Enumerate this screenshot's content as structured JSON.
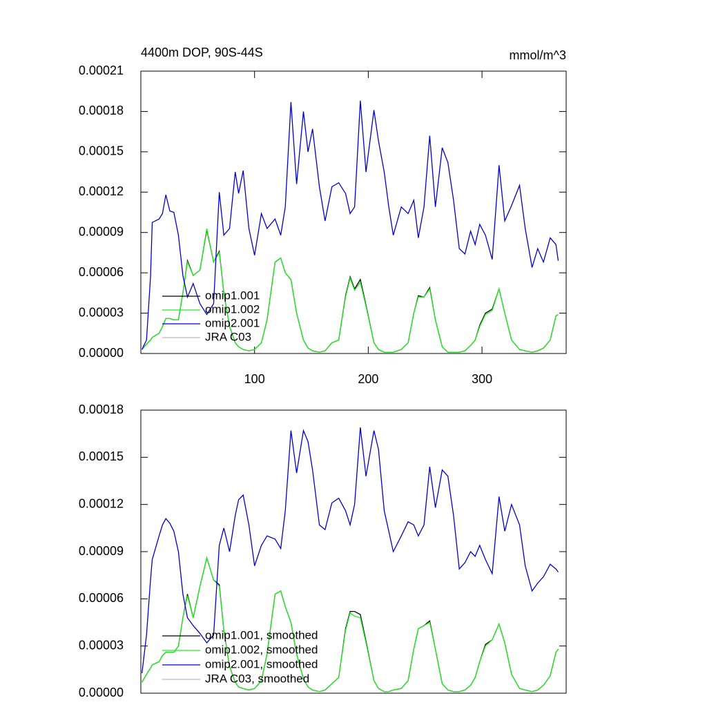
{
  "chart_data": [
    {
      "type": "line",
      "title": "4400m DOP, 90S-44S",
      "units": "mmol/m^3",
      "x": [
        1,
        5,
        8.5,
        10,
        16,
        19,
        22,
        25.5,
        29,
        33,
        37,
        41,
        46,
        52,
        58,
        64,
        69,
        73,
        78,
        83,
        86,
        90,
        95,
        100,
        106,
        111,
        118,
        123,
        127,
        132,
        137,
        143,
        147,
        151,
        157,
        162,
        168,
        174,
        180,
        184,
        188,
        193,
        198,
        205,
        209,
        214,
        218,
        222,
        229,
        235,
        240,
        244,
        249,
        254,
        259,
        265,
        270,
        275,
        280,
        285,
        290,
        294,
        298,
        303,
        309,
        315,
        320,
        326,
        333,
        338,
        344,
        349,
        354,
        360,
        365,
        367
      ],
      "series": [
        {
          "name": "omip1.001",
          "color": "#000000",
          "values": [
            3e-06,
            7e-06,
            1e-05,
            1.2e-05,
            1.5e-05,
            2e-05,
            2.6e-05,
            2.6e-05,
            2.5e-05,
            2.5e-05,
            4.5e-05,
            6.9e-05,
            5.8e-05,
            6.2e-05,
            9.2e-05,
            6.8e-05,
            7.6e-05,
            4.5e-05,
            2e-05,
            8e-06,
            5e-06,
            3e-06,
            2e-06,
            3e-06,
            8e-06,
            2.5e-05,
            6.8e-05,
            7.1e-05,
            6e-05,
            5.5e-05,
            3e-05,
            1e-05,
            4e-06,
            2e-06,
            1e-06,
            2e-06,
            8e-06,
            1e-05,
            4.3e-05,
            5.7e-05,
            4.8e-05,
            5.5e-05,
            3.6e-05,
            8e-06,
            3e-06,
            1e-06,
            1e-06,
            1e-06,
            3e-06,
            8e-06,
            3e-05,
            4.3e-05,
            4.2e-05,
            4.9e-05,
            2.5e-05,
            5e-06,
            1e-06,
            1e-06,
            1e-06,
            2e-06,
            6e-06,
            1e-05,
            2.1e-05,
            3e-05,
            3.3e-05,
            4.8e-05,
            3e-05,
            1e-05,
            3e-06,
            2e-06,
            1e-06,
            2e-06,
            4e-06,
            1e-05,
            2.8e-05,
            2.9e-05
          ]
        },
        {
          "name": "omip1.002",
          "color": "#22ee22",
          "values": [
            3e-06,
            7e-06,
            1e-05,
            1.2e-05,
            1.5e-05,
            2e-05,
            2.6e-05,
            2.6e-05,
            2.5e-05,
            2.5e-05,
            4.5e-05,
            6.8e-05,
            5.8e-05,
            6.2e-05,
            9.3e-05,
            6.8e-05,
            7.5e-05,
            4.5e-05,
            2e-05,
            8e-06,
            5e-06,
            3e-06,
            2e-06,
            3e-06,
            8e-06,
            2.5e-05,
            6.8e-05,
            7.1e-05,
            6e-05,
            5.5e-05,
            3e-05,
            1e-05,
            4e-06,
            2e-06,
            1e-06,
            2e-06,
            8e-06,
            1e-05,
            4.2e-05,
            5.6e-05,
            4.7e-05,
            5.3e-05,
            3.5e-05,
            8e-06,
            3e-06,
            1e-06,
            1e-06,
            1e-06,
            3e-06,
            8e-06,
            3e-05,
            4.2e-05,
            4.2e-05,
            4.8e-05,
            2.5e-05,
            5e-06,
            1e-06,
            1e-06,
            1e-06,
            2e-06,
            6e-06,
            1e-05,
            2e-05,
            2.9e-05,
            3.2e-05,
            4.8e-05,
            3e-05,
            1e-05,
            3e-06,
            2e-06,
            1e-06,
            2e-06,
            4e-06,
            1e-05,
            2.8e-05,
            2.9e-05
          ]
        },
        {
          "name": "omip2.001",
          "color": "#0000cc",
          "values": [
            3e-06,
            1e-05,
            5.7e-05,
            9.75e-05,
            0.0001,
            0.000104,
            0.000118,
            0.000106,
            0.000105,
            8.8e-05,
            5.8e-05,
            4.2e-05,
            5.2e-05,
            3.7e-05,
            2.9e-05,
            3.7e-05,
            0.00012,
            8.8e-05,
            9.3e-05,
            0.000135,
            0.000119,
            0.000136,
            9.3e-05,
            7.3e-05,
            0.000104,
            9.3e-05,
            0.0001,
            8.8e-05,
            0.000109,
            0.000187,
            0.000126,
            0.00018,
            0.00015,
            0.000167,
            0.000124,
            9.86e-05,
            0.000124,
            0.000127,
            0.000119,
            0.000104,
            0.000109,
            0.000188,
            0.000135,
            0.000181,
            0.000158,
            0.000135,
            0.000109,
            8.8e-05,
            0.000109,
            0.000104,
            0.000114,
            8.6e-05,
            0.000109,
            0.000162,
            0.000109,
            0.000153,
            0.000142,
            0.000114,
            7.8e-05,
            7.4e-05,
            9.1e-05,
            8.1e-05,
            9.6e-05,
            8.8e-05,
            7e-05,
            0.00014,
            9.86e-05,
            0.00011,
            0.000125,
            9.3e-05,
            6.4e-05,
            7.8e-05,
            6.8e-05,
            8.6e-05,
            8.1e-05,
            6.9e-05
          ]
        },
        {
          "name": "JRA C03",
          "color": "#bbbbbb"
        }
      ],
      "xlim": [
        0,
        374
      ],
      "xticks": [
        100,
        200,
        300
      ],
      "ylim": [
        0,
        0.00021
      ],
      "yticks": [
        {
          "value": 0,
          "label": "0.00000"
        },
        3e-05,
        6e-05,
        9e-05,
        0.00012,
        0.00015,
        0.00018,
        0.00021
      ],
      "legend": "lower left"
    },
    {
      "type": "line",
      "x": [
        1,
        5,
        8.5,
        10,
        16,
        19,
        22,
        25.5,
        29,
        33,
        37,
        41,
        46,
        52,
        58,
        64,
        69,
        73,
        78,
        83,
        86,
        90,
        95,
        100,
        106,
        111,
        118,
        123,
        127,
        132,
        137,
        143,
        147,
        151,
        157,
        162,
        168,
        174,
        180,
        184,
        188,
        193,
        198,
        205,
        209,
        214,
        218,
        222,
        229,
        235,
        240,
        244,
        249,
        254,
        259,
        265,
        270,
        275,
        280,
        285,
        290,
        294,
        298,
        303,
        309,
        315,
        320,
        326,
        333,
        338,
        344,
        349,
        354,
        360,
        365,
        367
      ],
      "series": [
        {
          "name": "omip1.001, smoothed",
          "color": "#000000",
          "values": [
            7e-06,
            1.2e-05,
            1.6e-05,
            1.8e-05,
            2e-05,
            2.4e-05,
            2.6e-05,
            2.6e-05,
            2.6e-05,
            3e-05,
            4.8e-05,
            6.3e-05,
            4.8e-05,
            6.8e-05,
            8.6e-05,
            7.2e-05,
            6.9e-05,
            4e-05,
            1.7e-05,
            7e-06,
            4e-06,
            3e-06,
            2e-06,
            3e-06,
            8e-06,
            2.5e-05,
            6.3e-05,
            6.5e-05,
            5.5e-05,
            4.5e-05,
            2.5e-05,
            9e-06,
            4e-06,
            2e-06,
            1e-06,
            2e-06,
            6e-06,
            1e-05,
            4.1e-05,
            5.2e-05,
            5.2e-05,
            5e-05,
            3.3e-05,
            8e-06,
            3e-06,
            1e-06,
            1e-06,
            2e-06,
            3e-06,
            8e-06,
            2.8e-05,
            4.1e-05,
            4.3e-05,
            4.6e-05,
            2.8e-05,
            6e-06,
            2e-06,
            1e-06,
            1e-06,
            2e-06,
            5e-06,
            1e-05,
            2e-05,
            3.1e-05,
            3.4e-05,
            4.4e-05,
            3.2e-05,
            1.2e-05,
            3e-06,
            2e-06,
            1e-06,
            2e-06,
            5e-06,
            1.1e-05,
            2.6e-05,
            2.8e-05
          ]
        },
        {
          "name": "omip1.002, smoothed",
          "color": "#22ee22",
          "values": [
            7e-06,
            1.2e-05,
            1.6e-05,
            1.8e-05,
            2e-05,
            2.4e-05,
            2.6e-05,
            2.6e-05,
            2.6e-05,
            3e-05,
            4.8e-05,
            6.2e-05,
            4.8e-05,
            6.8e-05,
            8.6e-05,
            7.2e-05,
            6.8e-05,
            4e-05,
            1.7e-05,
            7e-06,
            4e-06,
            3e-06,
            2e-06,
            3e-06,
            8e-06,
            2.5e-05,
            6.3e-05,
            6.5e-05,
            5.5e-05,
            4.5e-05,
            2.5e-05,
            9e-06,
            4e-06,
            2e-06,
            1e-06,
            2e-06,
            6e-06,
            1e-05,
            4e-05,
            5.1e-05,
            4.9e-05,
            4.8e-05,
            3.2e-05,
            8e-06,
            3e-06,
            1e-06,
            1e-06,
            2e-06,
            3e-06,
            8e-06,
            2.8e-05,
            4.1e-05,
            4.3e-05,
            4.5e-05,
            2.8e-05,
            6e-06,
            2e-06,
            1e-06,
            1e-06,
            2e-06,
            5e-06,
            1e-05,
            2e-05,
            3e-05,
            3.4e-05,
            4.4e-05,
            3.2e-05,
            1.2e-05,
            3e-06,
            2e-06,
            1e-06,
            2e-06,
            5e-06,
            1.1e-05,
            2.6e-05,
            2.8e-05
          ]
        },
        {
          "name": "omip2.001, smoothed",
          "color": "#0000cc",
          "values": [
            1.27e-05,
            3.7e-05,
            7.2e-05,
            8.5e-05,
            0.0001,
            0.000107,
            0.000111,
            0.000108,
            0.000103,
            9e-05,
            6.3e-05,
            4.8e-05,
            4.3e-05,
            3.8e-05,
            3.2e-05,
            3.7e-05,
            9.4e-05,
            0.000105,
            9e-05,
            0.000113,
            0.000123,
            0.000126,
            0.000107,
            8.1e-05,
            9.4e-05,
            0.0001,
            9.8e-05,
            9.2e-05,
            0.000116,
            0.000167,
            0.00014,
            0.000167,
            0.00016,
            0.000142,
            0.000107,
            0.000104,
            0.000121,
            0.000124,
            0.000116,
            0.000107,
            0.00012,
            0.000169,
            0.000138,
            0.000167,
            0.000155,
            0.000116,
            0.000103,
            9e-05,
            0.0001,
            0.000109,
            0.000107,
            0.0001,
            0.000107,
            0.000144,
            0.000118,
            0.000142,
            0.000138,
            0.000113,
            7.9e-05,
            8.3e-05,
            9e-05,
            8.7e-05,
            9.4e-05,
            8.5e-05,
            7.6e-05,
            0.000125,
            0.000103,
            0.00012,
            0.000107,
            8.1e-05,
            6.5e-05,
            7e-05,
            7.4e-05,
            8.2e-05,
            7.9e-05,
            7.7e-05
          ]
        },
        {
          "name": "JRA C03, smoothed",
          "color": "#bbbbbb"
        }
      ],
      "xlim": [
        0,
        374
      ],
      "ylim": [
        0,
        0.00018
      ],
      "yticks": [
        {
          "value": 0,
          "label": "0.00000"
        },
        3e-05,
        6e-05,
        9e-05,
        0.00012,
        0.00015,
        0.00018
      ],
      "legend": "lower left"
    }
  ]
}
